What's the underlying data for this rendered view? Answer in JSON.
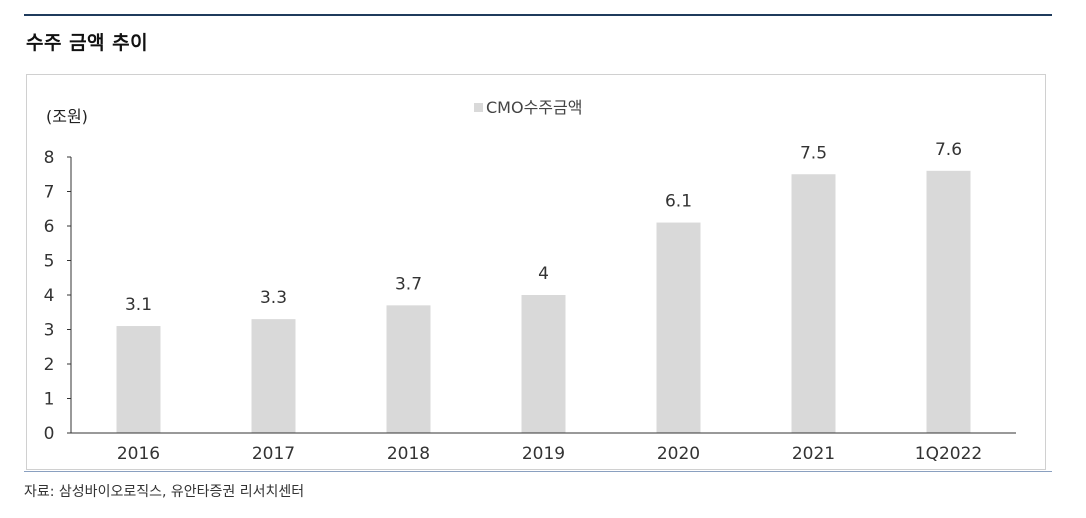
{
  "header": {
    "title": "수주 금액 추이"
  },
  "footer": {
    "source": "자료: 삼성바이오로직스, 유안타증권 리서치센터"
  },
  "colors": {
    "bar": "#d9d9d9",
    "rule": "#1f3b5c",
    "axis": "#333333"
  },
  "chart_data": {
    "type": "bar",
    "title": "",
    "unit_label": "(조원)",
    "legend": [
      "CMO수주금액"
    ],
    "legend_position": "top-center",
    "grid": false,
    "categories": [
      "2016",
      "2017",
      "2018",
      "2019",
      "2020",
      "2021",
      "1Q2022"
    ],
    "series": [
      {
        "name": "CMO수주금액",
        "values": [
          3.1,
          3.3,
          3.7,
          4,
          6.1,
          7.5,
          7.6
        ]
      }
    ],
    "data_labels": [
      "3.1",
      "3.3",
      "3.7",
      "4",
      "6.1",
      "7.5",
      "7.6"
    ],
    "ylim": [
      0,
      8
    ],
    "yticks": [
      "0",
      "1",
      "2",
      "3",
      "4",
      "5",
      "6",
      "7",
      "8"
    ]
  }
}
